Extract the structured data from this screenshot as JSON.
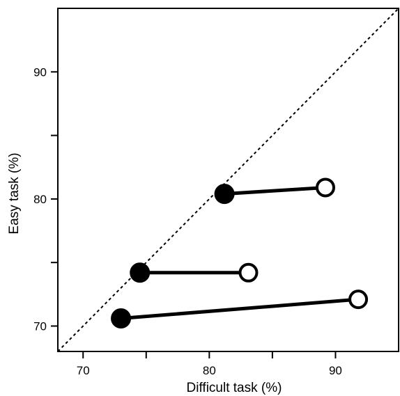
{
  "chart_data": {
    "type": "scatter",
    "title": "",
    "xlabel": "Difficult task (%)",
    "ylabel": "Easy task (%)",
    "xlim": [
      68,
      95
    ],
    "ylim": [
      68,
      95
    ],
    "xticks_major": [
      70,
      80,
      90
    ],
    "xticks_minor": [
      75,
      85
    ],
    "yticks_major": [
      70,
      80,
      90
    ],
    "yticks_minor": [
      75,
      85
    ],
    "diagonal_reference": true,
    "grid": false,
    "pairs": [
      {
        "filled": {
          "x": 81.2,
          "y": 80.4
        },
        "open": {
          "x": 89.2,
          "y": 80.9
        }
      },
      {
        "filled": {
          "x": 74.5,
          "y": 74.2
        },
        "open": {
          "x": 83.1,
          "y": 74.2
        }
      },
      {
        "filled": {
          "x": 73.0,
          "y": 70.6
        },
        "open": {
          "x": 91.8,
          "y": 72.1
        }
      }
    ],
    "colors": {
      "filled": "#000000",
      "open_fill": "#ffffff",
      "stroke": "#000000"
    }
  }
}
